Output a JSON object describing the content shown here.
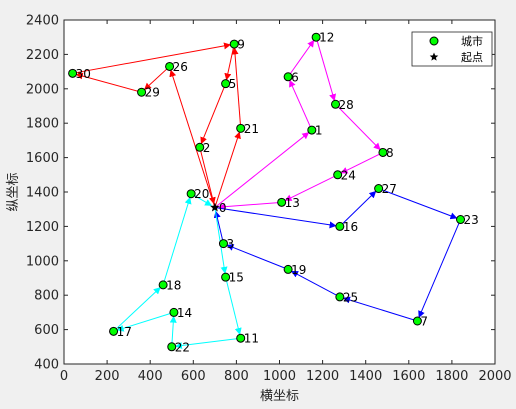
{
  "chart_data": {
    "type": "scatter",
    "xlabel": "横坐标",
    "ylabel": "纵坐标",
    "xlim": [
      0,
      2000
    ],
    "ylim": [
      400,
      2400
    ],
    "xticks": [
      0,
      200,
      400,
      600,
      800,
      1000,
      1200,
      1400,
      1600,
      1800,
      2000
    ],
    "yticks": [
      400,
      600,
      800,
      1000,
      1200,
      1400,
      1600,
      1800,
      2000,
      2200,
      2400
    ],
    "grid": false,
    "legend": {
      "location": "top-right",
      "entries": [
        {
          "label": "城市",
          "marker": "circle",
          "face": "#00ff00",
          "edge": "#000000"
        },
        {
          "label": "起点",
          "marker": "star",
          "face": "#000000",
          "edge": "#000000"
        }
      ]
    },
    "depot": {
      "x": 700,
      "y": 1310,
      "label": "0"
    },
    "cities": [
      {
        "id": "1",
        "x": 1150,
        "y": 1760
      },
      {
        "id": "2",
        "x": 630,
        "y": 1660
      },
      {
        "id": "3",
        "x": 740,
        "y": 1100
      },
      {
        "id": "5",
        "x": 750,
        "y": 2030
      },
      {
        "id": "6",
        "x": 1040,
        "y": 2070
      },
      {
        "id": "7",
        "x": 1640,
        "y": 650
      },
      {
        "id": "8",
        "x": 1480,
        "y": 1630
      },
      {
        "id": "9",
        "x": 790,
        "y": 2260
      },
      {
        "id": "11",
        "x": 820,
        "y": 550
      },
      {
        "id": "12",
        "x": 1170,
        "y": 2300
      },
      {
        "id": "13",
        "x": 1010,
        "y": 1340
      },
      {
        "id": "14",
        "x": 510,
        "y": 700
      },
      {
        "id": "15",
        "x": 750,
        "y": 905
      },
      {
        "id": "16",
        "x": 1280,
        "y": 1200
      },
      {
        "id": "17",
        "x": 230,
        "y": 590
      },
      {
        "id": "18",
        "x": 460,
        "y": 860
      },
      {
        "id": "19",
        "x": 1040,
        "y": 950
      },
      {
        "id": "20",
        "x": 590,
        "y": 1390
      },
      {
        "id": "21",
        "x": 820,
        "y": 1770
      },
      {
        "id": "22",
        "x": 500,
        "y": 500
      },
      {
        "id": "23",
        "x": 1840,
        "y": 1240
      },
      {
        "id": "24",
        "x": 1270,
        "y": 1500
      },
      {
        "id": "25",
        "x": 1280,
        "y": 790
      },
      {
        "id": "26",
        "x": 490,
        "y": 2130
      },
      {
        "id": "27",
        "x": 1460,
        "y": 1420
      },
      {
        "id": "28",
        "x": 1260,
        "y": 1910
      },
      {
        "id": "29",
        "x": 360,
        "y": 1980
      },
      {
        "id": "30",
        "x": 40,
        "y": 2090
      }
    ],
    "series": [
      {
        "color": "#ff0000",
        "route": [
          "0",
          "21",
          "9",
          "5",
          "2",
          "0"
        ]
      },
      {
        "color": "#ff0000",
        "route": [
          "0",
          "26",
          "29",
          "30",
          "9"
        ]
      },
      {
        "color": "#ff00ff",
        "route": [
          "0",
          "1",
          "6",
          "12",
          "28",
          "8",
          "24",
          "13",
          "0"
        ]
      },
      {
        "color": "#0000ff",
        "route": [
          "0",
          "16",
          "27",
          "23",
          "7",
          "25",
          "19",
          "3",
          "0"
        ]
      },
      {
        "color": "#00ffff",
        "route": [
          "0",
          "15",
          "11",
          "22",
          "14",
          "17",
          "18",
          "20",
          "0"
        ]
      }
    ]
  }
}
